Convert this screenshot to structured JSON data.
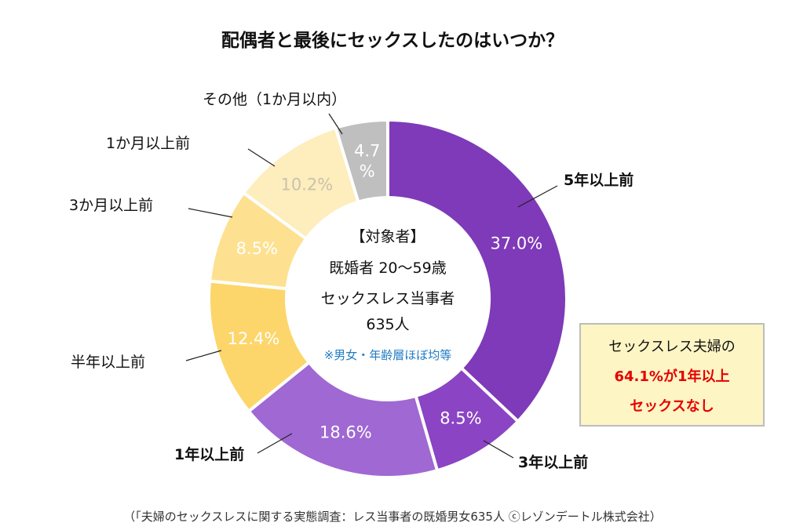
{
  "chart_data": {
    "type": "pie",
    "title": "配偶者と最後にセックスしたのはいつか？",
    "categories": [
      "5年以上前",
      "3年以上前",
      "1年以上前",
      "半年以上前",
      "3か月以上前",
      "1か月以上前",
      "その他（1か月以内）"
    ],
    "values": [
      37.0,
      8.5,
      18.6,
      12.4,
      8.5,
      10.2,
      4.7
    ],
    "value_labels": [
      "37.0%",
      "8.5%",
      "18.6%",
      "12.4%",
      "8.5%",
      "10.2%",
      "4.7\n%"
    ],
    "colors": [
      "#7e3ab8",
      "#8a44c4",
      "#a068d2",
      "#fcd66a",
      "#fde190",
      "#feedbd",
      "#bfbfbf"
    ],
    "label_colors": [
      "#ffffff",
      "#ffffff",
      "#ffffff",
      "#ffffff",
      "#ffffff",
      "#c9c2ad",
      "#ffffff"
    ],
    "bold_labels": [
      true,
      true,
      true,
      false,
      false,
      false,
      false
    ],
    "center_text": [
      "【対象者】",
      "既婚者 20～59歳",
      "セックスレス当事者",
      "635人"
    ],
    "center_note": "※男女・年齢層ほぼ均等",
    "center_note_color": "#1f7bc4"
  },
  "callout": {
    "line1": "セックスレス夫婦の",
    "line2": "64.1%が1年以上",
    "line3": "セックスなし"
  },
  "footnote": "（「夫婦のセックスレスに関する実態調査：レス当事者の既婚男女635人 ⓒレゾンデートル株式会社）"
}
